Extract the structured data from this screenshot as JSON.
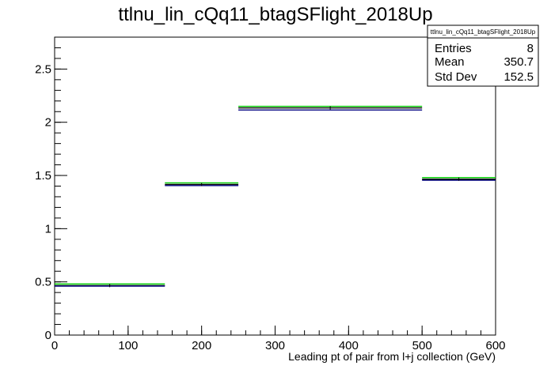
{
  "chart_data": {
    "type": "step",
    "title": "ttlnu_lin_cQq11_btagSFlight_2018Up",
    "xlabel": "Leading pt of pair from l+j collection (GeV)",
    "ylabel": "",
    "xlim": [
      0,
      600
    ],
    "ylim": [
      0,
      2.8
    ],
    "x_major_ticks": [
      0,
      100,
      200,
      300,
      400,
      500,
      600
    ],
    "y_major_ticks": [
      0,
      0.5,
      1,
      1.5,
      2,
      2.5
    ],
    "x_tick_labels": [
      "0",
      "100",
      "200",
      "300",
      "400",
      "500",
      "600"
    ],
    "y_tick_labels": [
      "0",
      "0.5",
      "1",
      "1.5",
      "2",
      "2.5"
    ],
    "bin_edges": [
      0,
      150,
      250,
      500,
      600
    ],
    "grid": false,
    "series": [
      {
        "color": "#00cc00",
        "values": [
          0.48,
          1.43,
          2.15,
          1.48
        ]
      },
      {
        "color": "#000000",
        "values": [
          0.465,
          1.415,
          2.135,
          1.465
        ]
      },
      {
        "color": "#000080",
        "values": [
          0.46,
          1.405,
          2.115,
          1.455
        ]
      }
    ],
    "stats_box": {
      "title": "ttlnu_lin_cQq11_btagSFlight_2018Up",
      "rows": [
        {
          "label": "Entries",
          "value": "8"
        },
        {
          "label": "Mean",
          "value": "350.7"
        },
        {
          "label": "Std Dev",
          "value": "152.5"
        }
      ]
    }
  }
}
